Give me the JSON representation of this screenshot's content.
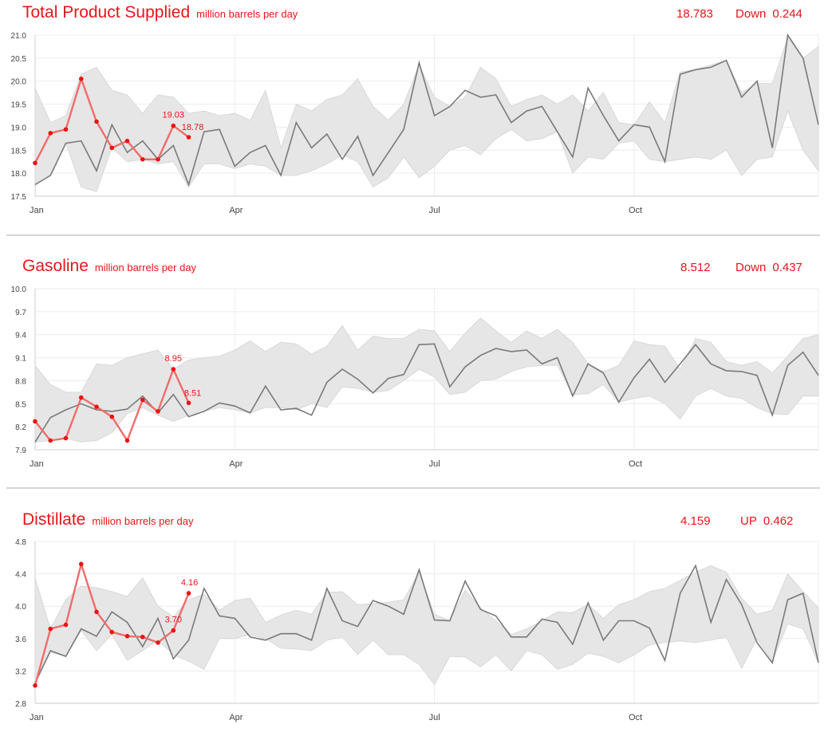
{
  "chart_data": [
    {
      "type": "line",
      "title": "Total Product Supplied",
      "units": "million barrels per day",
      "latest_value": "18.783",
      "change_direction": "Down",
      "change_amount": "0.244",
      "ylim": [
        17.5,
        21.0
      ],
      "y_ticks": [
        "17.5",
        "18.0",
        "18.5",
        "19.0",
        "19.5",
        "20.0",
        "20.5",
        "21.0"
      ],
      "x_tick_labels": [
        "Jan",
        "Apr",
        "Jul",
        "Oct"
      ],
      "x_tick_weeks": [
        0,
        13,
        26,
        39
      ],
      "weeks_total": 52,
      "grid": true,
      "band_high": [
        19.85,
        19.1,
        19.25,
        20.15,
        20.3,
        19.8,
        19.7,
        19.3,
        19.7,
        19.65,
        19.3,
        19.35,
        19.25,
        19.3,
        19.15,
        19.8,
        18.55,
        19.5,
        19.35,
        19.6,
        19.7,
        20.05,
        19.45,
        19.15,
        19.5,
        20.35,
        19.65,
        19.45,
        19.65,
        20.3,
        20.05,
        19.45,
        19.6,
        19.7,
        19.5,
        19.7,
        19.35,
        19.75,
        19.1,
        19.05,
        19.55,
        19.1,
        20.2,
        20.25,
        20.35,
        20.45,
        19.75,
        19.95,
        19.95,
        20.95,
        20.5,
        20.75
      ],
      "band_low": [
        17.75,
        17.95,
        18.65,
        17.7,
        17.6,
        18.55,
        18.25,
        18.3,
        18.2,
        18.25,
        17.7,
        18.2,
        18.2,
        18.1,
        18.2,
        18.15,
        17.95,
        17.95,
        18.05,
        18.2,
        18.4,
        18.25,
        17.7,
        17.9,
        18.35,
        17.9,
        18.15,
        18.5,
        18.6,
        18.4,
        18.75,
        18.95,
        18.7,
        18.75,
        18.9,
        18.0,
        18.35,
        18.3,
        18.65,
        18.7,
        18.3,
        18.25,
        18.3,
        18.35,
        18.3,
        18.5,
        17.95,
        18.3,
        18.35,
        19.35,
        18.5,
        18.05
      ],
      "series": [
        {
          "name": "",
          "color": "#7a7a7a",
          "values": [
            17.75,
            17.95,
            18.65,
            18.7,
            18.05,
            19.05,
            18.45,
            18.7,
            18.3,
            18.6,
            17.75,
            18.9,
            18.95,
            18.15,
            18.45,
            18.6,
            17.95,
            19.1,
            18.55,
            18.85,
            18.3,
            18.8,
            17.95,
            18.45,
            18.95,
            20.4,
            19.25,
            19.45,
            19.8,
            19.65,
            19.7,
            19.1,
            19.35,
            19.45,
            18.9,
            18.35,
            19.85,
            19.25,
            18.7,
            19.05,
            19.0,
            18.25,
            20.15,
            20.25,
            20.3,
            20.45,
            19.65,
            20.0,
            18.55,
            21.0,
            20.5,
            19.05
          ]
        },
        {
          "name": "",
          "color": "#f26b6b",
          "values": [
            18.22,
            18.87,
            18.95,
            20.05,
            19.12,
            18.55,
            18.7,
            18.3,
            18.3,
            19.03,
            18.78
          ]
        }
      ],
      "data_labels": [
        "19.03",
        "18.78"
      ]
    },
    {
      "type": "line",
      "title": "Gasoline",
      "units": "million barrels per day",
      "latest_value": "8.512",
      "change_direction": "Down",
      "change_amount": "0.437",
      "ylim": [
        7.9,
        10.0
      ],
      "y_ticks": [
        "7.9",
        "8.2",
        "8.5",
        "8.8",
        "9.1",
        "9.4",
        "9.7",
        "10.0"
      ],
      "x_tick_labels": [
        "Jan",
        "Apr",
        "Jul",
        "Oct"
      ],
      "x_tick_weeks": [
        0,
        13,
        26,
        39
      ],
      "weeks_total": 52,
      "grid": true,
      "band_high": [
        9.0,
        8.75,
        8.65,
        8.65,
        9.02,
        9.0,
        9.1,
        9.15,
        9.2,
        8.95,
        9.07,
        9.1,
        9.12,
        9.2,
        9.32,
        9.18,
        9.3,
        9.28,
        9.15,
        9.25,
        9.52,
        9.2,
        9.38,
        9.35,
        9.35,
        9.47,
        9.45,
        9.18,
        9.42,
        9.62,
        9.45,
        9.3,
        9.45,
        9.35,
        9.47,
        9.3,
        9.02,
        8.92,
        9.0,
        9.32,
        9.27,
        9.25,
        8.95,
        9.35,
        9.3,
        9.05,
        9.0,
        9.05,
        8.9,
        9.12,
        9.35,
        9.4
      ],
      "band_low": [
        8.0,
        8.02,
        8.05,
        8.0,
        8.02,
        8.12,
        8.37,
        8.45,
        8.35,
        8.27,
        8.35,
        8.4,
        8.45,
        8.42,
        8.38,
        8.45,
        8.45,
        8.42,
        8.5,
        8.45,
        8.72,
        8.7,
        8.65,
        8.67,
        8.8,
        8.95,
        8.85,
        8.62,
        8.65,
        8.8,
        8.82,
        8.92,
        8.98,
        9.0,
        9.0,
        8.62,
        8.63,
        8.75,
        8.52,
        8.57,
        8.6,
        8.5,
        8.3,
        8.6,
        8.7,
        8.6,
        8.57,
        8.45,
        8.37,
        8.36,
        8.6,
        8.6
      ],
      "series": [
        {
          "name": "",
          "color": "#7a7a7a",
          "values": [
            8.0,
            8.32,
            8.42,
            8.5,
            8.42,
            8.4,
            8.43,
            8.6,
            8.38,
            8.62,
            8.33,
            8.4,
            8.51,
            8.47,
            8.38,
            8.73,
            8.42,
            8.44,
            8.35,
            8.78,
            8.95,
            8.82,
            8.64,
            8.83,
            8.88,
            9.27,
            9.28,
            8.72,
            8.98,
            9.13,
            9.22,
            9.18,
            9.2,
            9.02,
            9.1,
            8.6,
            9.02,
            8.9,
            8.52,
            8.84,
            9.08,
            8.78,
            9.02,
            9.27,
            9.02,
            8.93,
            8.92,
            8.87,
            8.35,
            9.0,
            9.17,
            8.87
          ]
        },
        {
          "name": "",
          "color": "#f26b6b",
          "values": [
            8.27,
            8.02,
            8.05,
            8.58,
            8.46,
            8.33,
            8.02,
            8.55,
            8.4,
            8.95,
            8.51
          ]
        }
      ],
      "data_labels": [
        "8.95",
        "8.51"
      ]
    },
    {
      "type": "line",
      "title": "Distillate",
      "units": "million barrels per day",
      "latest_value": "4.159",
      "change_direction": "UP",
      "change_amount": "0.462",
      "ylim": [
        2.8,
        4.8
      ],
      "y_ticks": [
        "2.8",
        "3.2",
        "3.6",
        "4.0",
        "4.4",
        "4.8"
      ],
      "x_tick_labels": [
        "Jan",
        "Apr",
        "Jul",
        "Oct"
      ],
      "x_tick_weeks": [
        0,
        13,
        26,
        39
      ],
      "weeks_total": 52,
      "grid": true,
      "band_high": [
        4.35,
        3.72,
        4.08,
        4.25,
        4.23,
        4.18,
        4.12,
        4.35,
        4.0,
        3.87,
        4.08,
        4.15,
        3.95,
        4.07,
        4.1,
        3.8,
        3.89,
        3.95,
        3.9,
        4.17,
        4.18,
        4.02,
        4.03,
        4.05,
        4.08,
        4.42,
        3.9,
        3.82,
        4.2,
        3.98,
        3.82,
        3.65,
        3.72,
        3.82,
        3.93,
        3.92,
        4.02,
        3.85,
        4.02,
        4.08,
        4.18,
        4.22,
        4.32,
        4.42,
        4.5,
        4.42,
        4.1,
        3.9,
        3.95,
        4.4,
        4.18,
        3.98
      ],
      "band_low": [
        3.05,
        3.43,
        3.38,
        3.7,
        3.45,
        3.65,
        3.33,
        3.45,
        3.58,
        3.4,
        3.32,
        3.22,
        3.6,
        3.6,
        3.65,
        3.6,
        3.48,
        3.47,
        3.45,
        3.58,
        3.62,
        3.4,
        3.58,
        3.4,
        3.4,
        3.28,
        3.03,
        3.38,
        3.37,
        3.25,
        3.4,
        3.2,
        3.45,
        3.4,
        3.22,
        3.28,
        3.42,
        3.38,
        3.3,
        3.4,
        3.52,
        3.55,
        3.57,
        3.55,
        3.58,
        3.62,
        3.23,
        3.6,
        3.32,
        3.78,
        3.72,
        3.3
      ],
      "series": [
        {
          "name": "",
          "color": "#7a7a7a",
          "values": [
            3.05,
            3.45,
            3.38,
            3.72,
            3.63,
            3.93,
            3.8,
            3.5,
            3.85,
            3.35,
            3.58,
            4.22,
            3.88,
            3.85,
            3.62,
            3.58,
            3.66,
            3.66,
            3.58,
            4.22,
            3.82,
            3.75,
            4.07,
            4.0,
            3.9,
            4.45,
            3.83,
            3.82,
            4.31,
            3.96,
            3.88,
            3.62,
            3.62,
            3.84,
            3.8,
            3.53,
            4.04,
            3.58,
            3.82,
            3.82,
            3.73,
            3.33,
            4.16,
            4.5,
            3.8,
            4.33,
            4.02,
            3.55,
            3.3,
            4.08,
            4.16,
            3.3
          ]
        },
        {
          "name": "",
          "color": "#f26b6b",
          "values": [
            3.02,
            3.72,
            3.77,
            4.52,
            3.93,
            3.68,
            3.63,
            3.62,
            3.55,
            3.7,
            4.16
          ]
        }
      ],
      "data_labels": [
        "3.70",
        "4.16"
      ]
    }
  ]
}
